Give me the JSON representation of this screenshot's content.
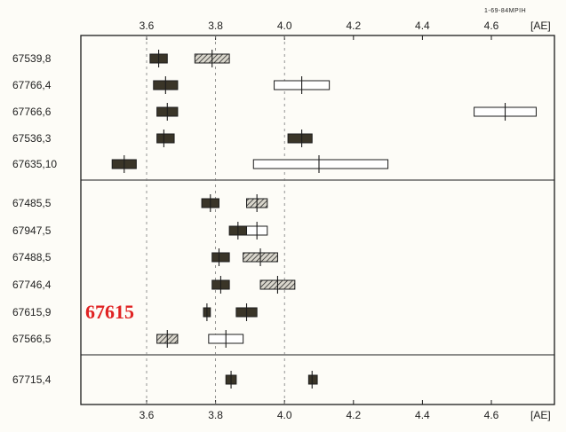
{
  "chart_data": {
    "type": "range",
    "corner_note": "1-69-84MPIH",
    "x_unit_top": "[AE]",
    "x_unit_bottom": "[AE]",
    "xlim": [
      3.4,
      4.8
    ],
    "x_ticks": [
      "3.6",
      "3.8",
      "4.0",
      "4.2",
      "4.4",
      "4.6"
    ],
    "x_tick_values": [
      3.6,
      3.8,
      4.0,
      4.2,
      4.4,
      4.6
    ],
    "grid": "dashed verticals at 3.6, 3.8, 4.0",
    "legend": {
      "black": "solid dark fill",
      "hatched": "hatched fill",
      "white": "open (white) fill"
    },
    "groups": [
      {
        "rows": [
          {
            "label": "67539,8",
            "boxes": [
              {
                "fill": "black",
                "low": 3.61,
                "center": 3.635,
                "high": 3.66
              },
              {
                "fill": "hatched",
                "low": 3.74,
                "center": 3.79,
                "high": 3.84
              }
            ]
          },
          {
            "label": "67766,4",
            "boxes": [
              {
                "fill": "black",
                "low": 3.62,
                "center": 3.655,
                "high": 3.69
              },
              {
                "fill": "white",
                "low": 3.97,
                "center": 4.05,
                "high": 4.13
              }
            ]
          },
          {
            "label": "67766,6",
            "boxes": [
              {
                "fill": "black",
                "low": 3.63,
                "center": 3.66,
                "high": 3.69
              },
              {
                "fill": "white",
                "low": 4.55,
                "center": 4.64,
                "high": 4.73
              }
            ]
          },
          {
            "label": "67536,3",
            "boxes": [
              {
                "fill": "black",
                "low": 3.63,
                "center": 3.65,
                "high": 3.68
              },
              {
                "fill": "black",
                "low": 4.01,
                "center": 4.05,
                "high": 4.08
              }
            ]
          },
          {
            "label": "67635,10",
            "boxes": [
              {
                "fill": "black",
                "low": 3.5,
                "center": 3.535,
                "high": 3.57
              },
              {
                "fill": "white",
                "low": 3.91,
                "center": 4.1,
                "high": 4.3
              }
            ]
          }
        ]
      },
      {
        "rows": [
          {
            "label": "67485,5",
            "boxes": [
              {
                "fill": "black",
                "low": 3.76,
                "center": 3.785,
                "high": 3.81
              },
              {
                "fill": "hatched",
                "low": 3.89,
                "center": 3.92,
                "high": 3.95
              }
            ]
          },
          {
            "label": "67947,5",
            "boxes": [
              {
                "fill": "black",
                "low": 3.84,
                "center": 3.865,
                "high": 3.89
              },
              {
                "fill": "white",
                "low": 3.89,
                "center": 3.92,
                "high": 3.95
              }
            ]
          },
          {
            "label": "67488,5",
            "boxes": [
              {
                "fill": "black",
                "low": 3.79,
                "center": 3.81,
                "high": 3.84
              },
              {
                "fill": "hatched",
                "low": 3.88,
                "center": 3.93,
                "high": 3.98
              }
            ]
          },
          {
            "label": "67746,4",
            "boxes": [
              {
                "fill": "black",
                "low": 3.79,
                "center": 3.815,
                "high": 3.84
              },
              {
                "fill": "hatched",
                "low": 3.93,
                "center": 3.98,
                "high": 4.03
              }
            ]
          },
          {
            "label": "67615,9",
            "boxes": [
              {
                "fill": "black",
                "low": 3.765,
                "center": 3.775,
                "high": 3.785
              },
              {
                "fill": "black",
                "low": 3.86,
                "center": 3.89,
                "high": 3.92
              }
            ]
          },
          {
            "label": "67566,5",
            "boxes": [
              {
                "fill": "hatched",
                "low": 3.63,
                "center": 3.66,
                "high": 3.69
              },
              {
                "fill": "white",
                "low": 3.78,
                "center": 3.83,
                "high": 3.88
              }
            ]
          }
        ]
      },
      {
        "rows": [
          {
            "label": "67715,4",
            "boxes": [
              {
                "fill": "black",
                "low": 3.83,
                "center": 3.845,
                "high": 3.86
              },
              {
                "fill": "black",
                "low": 4.07,
                "center": 4.08,
                "high": 4.095
              }
            ]
          }
        ]
      }
    ]
  },
  "annotation": {
    "text": "67615",
    "color": "#e02323"
  }
}
